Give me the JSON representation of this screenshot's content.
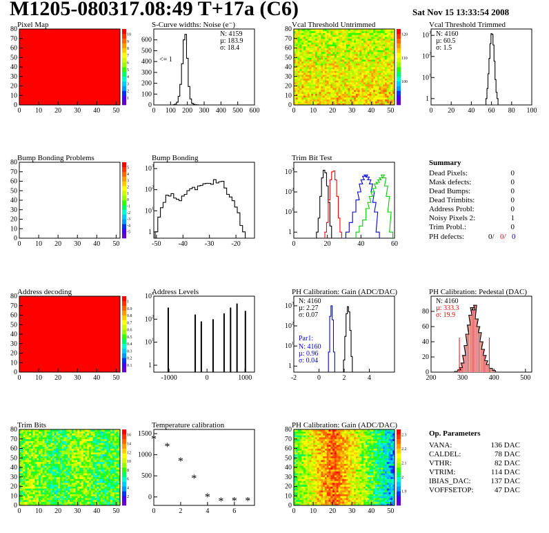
{
  "header": {
    "title": "M1205-080317.08:49 T+17a (C6)",
    "date": "Sat Nov 15 13:33:54 2008"
  },
  "colors": {
    "red": "#ff0000",
    "blue": "#0000dd",
    "green": "#00cc00",
    "black": "#000000"
  },
  "chart_data": [
    {
      "id": "pixel-map",
      "type": "heatmap",
      "title": "Pixel Map",
      "fill": "uniform-red",
      "xticks": [
        "0",
        "10",
        "20",
        "30",
        "40",
        "50"
      ],
      "yticks": [
        "0",
        "10",
        "20",
        "30",
        "40",
        "50",
        "60",
        "70",
        "80"
      ],
      "zticks": [
        "1",
        "2",
        "3",
        "4",
        "5",
        "6",
        "7",
        "8",
        "9",
        "10"
      ],
      "xlim": [
        0,
        52
      ],
      "ylim": [
        0,
        80
      ],
      "zlim": [
        0,
        10
      ],
      "palette": "rainbow"
    },
    {
      "id": "scurve",
      "type": "line",
      "title": "S-Curve widths: Noise (e⁻)",
      "xticks": [
        "0",
        "100",
        "200",
        "300",
        "400",
        "500",
        "600"
      ],
      "yticks": [
        "0",
        "100",
        "200",
        "300",
        "400",
        "500",
        "600"
      ],
      "xlim": [
        0,
        600
      ],
      "ylim": [
        0,
        700
      ],
      "annotation": "<= 1",
      "stats": {
        "N": "4159",
        "mean": "183.9",
        "sigma": "18.4"
      },
      "series": [
        {
          "name": "noise",
          "x": [
            120,
            130,
            140,
            150,
            160,
            170,
            180,
            190,
            200,
            210,
            220,
            230,
            240,
            250,
            260
          ],
          "values": [
            2,
            8,
            25,
            80,
            190,
            380,
            600,
            650,
            430,
            170,
            55,
            15,
            6,
            2,
            1
          ]
        }
      ]
    },
    {
      "id": "vcal-untrimmed",
      "type": "heatmap",
      "title": "Vcal Threshold Untrimmed",
      "xticks": [
        "0",
        "10",
        "20",
        "30",
        "40",
        "50"
      ],
      "yticks": [
        "0",
        "10",
        "20",
        "30",
        "40",
        "50",
        "60",
        "70",
        "80"
      ],
      "zticks": [
        "100",
        "110",
        "120"
      ],
      "xlim": [
        0,
        52
      ],
      "ylim": [
        0,
        80
      ],
      "palette": "rainbow"
    },
    {
      "id": "vcal-trimmed",
      "type": "line",
      "title": "Vcal Threshold Trimmed",
      "log": true,
      "xticks": [
        "0",
        "20",
        "40",
        "60",
        "80",
        "100"
      ],
      "xlim": [
        0,
        100
      ],
      "ylim": [
        0.5,
        2000
      ],
      "stats": {
        "N": "4160",
        "mean": "60.5",
        "sigma": "1.5"
      },
      "series": [
        {
          "name": "vcal",
          "x": [
            55,
            56,
            57,
            58,
            59,
            60,
            61,
            62,
            63,
            64,
            65,
            66
          ],
          "values": [
            1,
            3,
            15,
            80,
            400,
            1200,
            1100,
            350,
            60,
            8,
            2,
            1
          ]
        }
      ]
    },
    {
      "id": "bump-problems",
      "type": "heatmap",
      "title": "Bump Bonding Problems",
      "fill": "empty",
      "xticks": [
        "0",
        "10",
        "20",
        "30",
        "40",
        "50"
      ],
      "yticks": [
        "0",
        "10",
        "20",
        "30",
        "40",
        "50",
        "60",
        "70",
        "80"
      ],
      "zticks": [
        "-5",
        "-4",
        "-3",
        "-2",
        "-1",
        "0",
        "1",
        "2",
        "3",
        "4",
        "5"
      ],
      "xlim": [
        0,
        52
      ],
      "ylim": [
        0,
        80
      ],
      "palette": "rainbow"
    },
    {
      "id": "bump-bonding",
      "type": "line",
      "title": "Bump Bonding",
      "log": true,
      "xticks": [
        "-50",
        "-40",
        "-30",
        "-20"
      ],
      "xlim": [
        -51,
        -13
      ],
      "ylim": [
        0.5,
        2000
      ],
      "series": [
        {
          "name": "bump",
          "x": [
            -50,
            -49,
            -48,
            -47,
            -46,
            -45,
            -44,
            -43,
            -42,
            -41,
            -40,
            -39,
            -38,
            -37,
            -36,
            -35,
            -34,
            -33,
            -32,
            -31,
            -30,
            -29,
            -28,
            -27,
            -26,
            -25,
            -24,
            -23,
            -22,
            -21,
            -20,
            -19,
            -18,
            -17
          ],
          "values": [
            1,
            5,
            14,
            25,
            55,
            50,
            65,
            40,
            35,
            30,
            50,
            60,
            90,
            110,
            130,
            100,
            150,
            160,
            190,
            200,
            200,
            180,
            300,
            210,
            240,
            250,
            120,
            60,
            45,
            30,
            15,
            8,
            2,
            1
          ]
        }
      ]
    },
    {
      "id": "trim-bit",
      "type": "line",
      "title": "Trim Bit Test",
      "log": true,
      "xticks": [
        "0",
        "20",
        "40",
        "60"
      ],
      "xlim": [
        0,
        60
      ],
      "ylim": [
        0.5,
        3000
      ],
      "series": [
        {
          "name": "trim-black",
          "color": "#000000",
          "x": [
            14,
            15,
            16,
            17,
            18,
            19,
            20,
            21,
            22
          ],
          "values": [
            1,
            5,
            60,
            500,
            1200,
            900,
            200,
            30,
            2
          ]
        },
        {
          "name": "trim-red",
          "color": "#ff0000",
          "x": [
            19,
            20,
            21,
            22,
            23,
            24,
            25,
            26,
            27,
            28
          ],
          "values": [
            1,
            3,
            40,
            400,
            1000,
            1100,
            400,
            60,
            5,
            1
          ]
        },
        {
          "name": "trim-blue",
          "color": "#0000dd",
          "x": [
            32,
            34,
            36,
            38,
            39,
            40,
            41,
            42,
            43,
            44,
            45,
            46,
            47,
            48,
            49,
            50
          ],
          "values": [
            1,
            3,
            10,
            40,
            100,
            250,
            400,
            600,
            700,
            550,
            400,
            250,
            100,
            30,
            10,
            1
          ]
        },
        {
          "name": "trim-green",
          "color": "#00cc00",
          "x": [
            38,
            40,
            42,
            44,
            45,
            46,
            47,
            48,
            49,
            50,
            51,
            52,
            53,
            54,
            55,
            56,
            57,
            58
          ],
          "values": [
            1,
            2,
            4,
            15,
            30,
            60,
            100,
            150,
            250,
            300,
            400,
            500,
            700,
            500,
            200,
            60,
            10,
            1
          ]
        }
      ]
    },
    {
      "id": "address-decoding",
      "type": "heatmap",
      "title": "Address decoding",
      "fill": "uniform-red",
      "xticks": [
        "0",
        "10",
        "20",
        "30",
        "40",
        "50"
      ],
      "yticks": [
        "0",
        "10",
        "20",
        "30",
        "40",
        "50",
        "60",
        "70",
        "80"
      ],
      "zticks": [
        "0.1",
        "0.2",
        "0.3",
        "0.4",
        "0.5",
        "0.6",
        "0.7",
        "0.8",
        "0.9",
        "1"
      ],
      "xlim": [
        0,
        52
      ],
      "ylim": [
        0,
        80
      ],
      "palette": "rainbow"
    },
    {
      "id": "address-levels",
      "type": "bar",
      "title": "Address Levels",
      "log": true,
      "xticks": [
        "-1000",
        "0",
        "1000"
      ],
      "xlim": [
        -1400,
        1250
      ],
      "ylim": [
        0.5,
        1000
      ],
      "x": [
        -1020,
        -310,
        -150,
        160,
        450,
        620,
        790,
        1010
      ],
      "values": [
        320,
        160,
        80,
        100,
        180,
        320,
        480,
        230
      ]
    },
    {
      "id": "ph-gain",
      "type": "line",
      "title": "PH Calibration: Gain (ADC/DAC)",
      "log": true,
      "xticks": [
        "-2",
        "0",
        "2",
        "4"
      ],
      "xlim": [
        -2,
        6
      ],
      "ylim": [
        0.5,
        3000
      ],
      "stats": {
        "N": "4160",
        "mean": "2.27",
        "sigma": "0.07"
      },
      "stats2": {
        "label": "Par1:",
        "N": "4160",
        "mean": "0.96",
        "sigma": "0.04"
      },
      "series": [
        {
          "name": "gain",
          "color": "#000000",
          "x": [
            2.0,
            2.1,
            2.2,
            2.3,
            2.4,
            2.5,
            2.6
          ],
          "values": [
            2,
            30,
            400,
            900,
            500,
            60,
            3
          ]
        },
        {
          "name": "par1",
          "color": "#0000dd",
          "x": [
            0.8,
            0.9,
            1.0,
            1.1,
            1.2
          ],
          "values": [
            5,
            300,
            1000,
            200,
            5
          ]
        }
      ]
    },
    {
      "id": "ph-pedestal",
      "type": "line",
      "title": "PH Calibration: Pedestal (DAC)",
      "xticks": [
        "200",
        "300",
        "400",
        "500"
      ],
      "yticks": [
        "0",
        "20",
        "40",
        "60",
        "80"
      ],
      "xlim": [
        200,
        520
      ],
      "ylim": [
        0,
        100
      ],
      "stats": {
        "N": "4160",
        "mean": "333.3",
        "sigma": "19.9"
      },
      "fit_range": [
        290,
        385
      ],
      "series": [
        {
          "name": "pedestal",
          "x": [
            270,
            280,
            290,
            295,
            300,
            305,
            310,
            315,
            320,
            325,
            330,
            335,
            340,
            345,
            350,
            355,
            360,
            365,
            370,
            375,
            380,
            390,
            400,
            410
          ],
          "values": [
            0,
            1,
            3,
            6,
            12,
            22,
            35,
            50,
            62,
            75,
            85,
            82,
            88,
            70,
            60,
            52,
            40,
            30,
            22,
            15,
            10,
            5,
            2,
            0
          ]
        }
      ]
    },
    {
      "id": "trim-bits",
      "type": "heatmap",
      "title": "Trim Bits",
      "xticks": [
        "0",
        "10",
        "20",
        "30",
        "40",
        "50"
      ],
      "yticks": [
        "0",
        "10",
        "20",
        "30",
        "40",
        "50",
        "60",
        "70",
        "80"
      ],
      "zticks": [
        "2",
        "4",
        "6",
        "8",
        "10",
        "12",
        "14",
        "16"
      ],
      "xlim": [
        0,
        52
      ],
      "ylim": [
        0,
        80
      ],
      "palette": "rainbow"
    },
    {
      "id": "temperature",
      "type": "scatter",
      "title": "Temperature calibration",
      "xticks": [
        "0",
        "2",
        "4",
        "6"
      ],
      "yticks": [
        "0",
        "500",
        "1000",
        "1500"
      ],
      "xlim": [
        0,
        7.5
      ],
      "ylim": [
        -200,
        1600
      ],
      "x": [
        0,
        1,
        2,
        3,
        4,
        5,
        6,
        7
      ],
      "values": [
        1400,
        1220,
        880,
        470,
        30,
        -70,
        -60,
        -60
      ]
    },
    {
      "id": "ph-gain-map",
      "type": "heatmap",
      "title": "PH Calibration: Gain (ADC/DAC)",
      "xticks": [
        "0",
        "10",
        "20",
        "30",
        "40",
        "50"
      ],
      "yticks": [
        "0",
        "10",
        "20",
        "30",
        "40",
        "50",
        "60",
        "70",
        "80"
      ],
      "zticks": [
        "1.9",
        "2",
        "2.1",
        "2.2",
        "2.3"
      ],
      "xlim": [
        0,
        52
      ],
      "ylim": [
        0,
        80
      ],
      "palette": "rainbow"
    }
  ],
  "summary": {
    "title": "Summary",
    "rows": [
      {
        "label": "Dead Pixels:",
        "value": "0"
      },
      {
        "label": "Mask defects:",
        "value": "0"
      },
      {
        "label": "Dead Bumps:",
        "value": "0"
      },
      {
        "label": "Dead Trimbits:",
        "value": "0"
      },
      {
        "label": "Address Probl:",
        "value": "0"
      },
      {
        "label": "Noisy Pixels 2:",
        "value": "1"
      },
      {
        "label": "Trim Probl.:",
        "value": "0"
      }
    ],
    "ph": {
      "label": "PH defects:",
      "v1": "0/",
      "v2": "0/",
      "v3": "0"
    }
  },
  "params": {
    "title": "Op. Parameters",
    "rows": [
      {
        "label": "VANA:",
        "value": "136 DAC"
      },
      {
        "label": "CALDEL:",
        "value": "78 DAC"
      },
      {
        "label": "VTHR:",
        "value": "82 DAC"
      },
      {
        "label": "VTRIM:",
        "value": "114 DAC"
      },
      {
        "label": "IBIAS_DAC:",
        "value": "137 DAC"
      },
      {
        "label": "VOFFSETOP:",
        "value": "47 DAC"
      }
    ]
  }
}
